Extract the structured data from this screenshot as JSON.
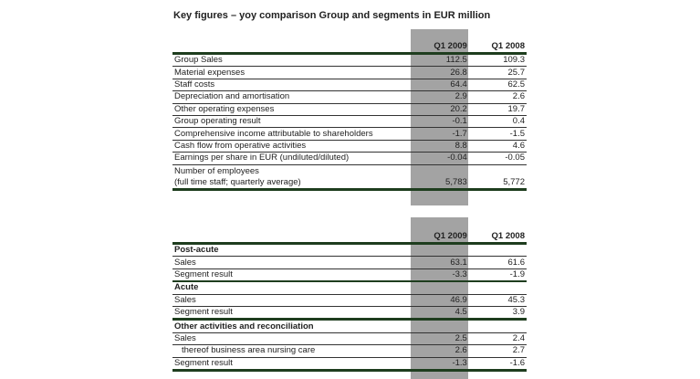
{
  "title": "Key figures – yoy comparison Group and segments in EUR million",
  "columns": [
    "Q1 2009",
    "Q1 2008"
  ],
  "table1": [
    {
      "label": "Group Sales",
      "q1_2009": "112.5",
      "q1_2008": "109.3"
    },
    {
      "label": "Material expenses",
      "q1_2009": "26.8",
      "q1_2008": "25.7"
    },
    {
      "label": "Staff costs",
      "q1_2009": "64.4",
      "q1_2008": "62.5"
    },
    {
      "label": "Depreciation and amortisation",
      "q1_2009": "2.9",
      "q1_2008": "2.6"
    },
    {
      "label": "Other operating expenses",
      "q1_2009": "20.2",
      "q1_2008": "19.7"
    },
    {
      "label": "Group operating result",
      "q1_2009": "-0.1",
      "q1_2008": "0.4"
    },
    {
      "label": "Comprehensive income attributable to shareholders",
      "q1_2009": "-1.7",
      "q1_2008": "-1.5"
    },
    {
      "label": "Cash flow from operative activities",
      "q1_2009": "8.8",
      "q1_2008": "4.6"
    },
    {
      "label": "Earnings per share in EUR (undiluted/diluted)",
      "q1_2009": "-0.04",
      "q1_2008": "-0.05"
    },
    {
      "label": "Number of employees",
      "label2": "(full time staff; quarterly average)",
      "q1_2009": "5,783",
      "q1_2008": "5,772"
    }
  ],
  "table2": {
    "post_acute": {
      "heading": "Post-acute",
      "sales": [
        "Sales",
        "63.1",
        "61.6"
      ],
      "result": [
        "Segment result",
        "-3.3",
        "-1.9"
      ]
    },
    "acute": {
      "heading": "Acute",
      "sales": [
        "Sales",
        "46.9",
        "45.3"
      ],
      "result": [
        "Segment result",
        "4.5",
        "3.9"
      ]
    },
    "other": {
      "heading": "Other activities and reconciliation",
      "sales": [
        "Sales",
        "2.5",
        "2.4"
      ],
      "nursing": [
        "thereof business area nursing care",
        "2.6",
        "2.7"
      ],
      "result": [
        "Segment result",
        "-1.3",
        "-1.6"
      ]
    }
  }
}
